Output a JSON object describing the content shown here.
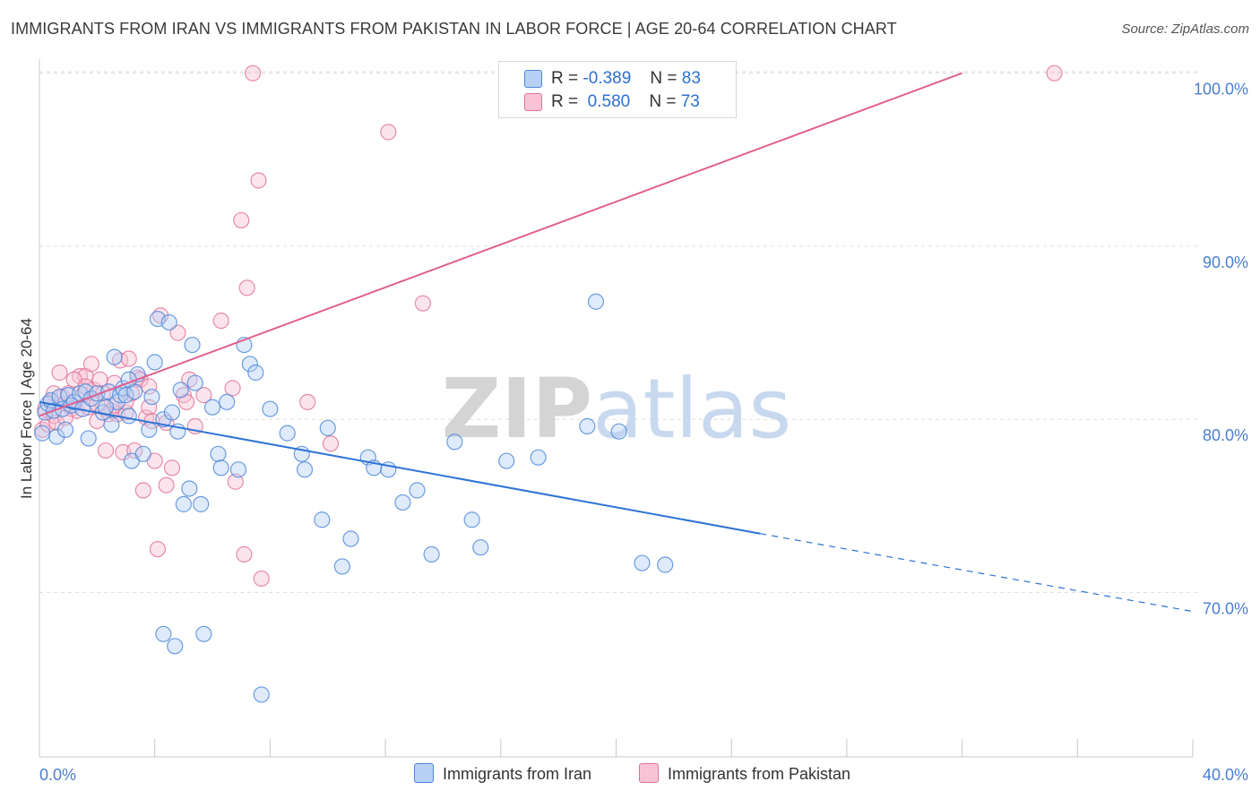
{
  "title": "IMMIGRANTS FROM IRAN VS IMMIGRANTS FROM PAKISTAN IN LABOR FORCE | AGE 20-64 CORRELATION CHART",
  "source": "Source: ZipAtlas.com",
  "watermark": "ZIPatlas",
  "colors": {
    "iran": "#4a86d8",
    "iran_fill": "#b8d0f3",
    "pakistan": "#e07098",
    "pakistan_fill": "#f8c4d5",
    "grid": "#dddddd",
    "tick_text": "#4a7fd0"
  },
  "legend": {
    "iran": {
      "r_label": "R =",
      "r_value": "-0.389",
      "n_label": "N =",
      "n_value": "83"
    },
    "pakistan": {
      "r_label": "R =",
      "r_value": "0.580",
      "n_label": "N =",
      "n_value": "73"
    }
  },
  "bottom_legend": {
    "iran": "Immigrants from Iran",
    "pakistan": "Immigrants from Pakistan"
  },
  "chart_data": {
    "type": "scatter",
    "title": "IMMIGRANTS FROM IRAN VS IMMIGRANTS FROM PAKISTAN IN LABOR FORCE | AGE 20-64 CORRELATION CHART",
    "ylabel": "In Labor Force | Age 20-64",
    "xlim": [
      0,
      40
    ],
    "ylim": [
      60.5,
      100.5
    ],
    "x_tick_labels": [
      "0.0%",
      "40.0%"
    ],
    "y_ticks": [
      70,
      80,
      90,
      100
    ],
    "y_tick_labels": [
      "70.0%",
      "80.0%",
      "90.0%",
      "100.0%"
    ],
    "grid": true,
    "legend_position": "top-center",
    "series": [
      {
        "name": "Immigrants from Iran",
        "points": [
          [
            0.1,
            79.2
          ],
          [
            0.2,
            80.4
          ],
          [
            0.3,
            80.9
          ],
          [
            0.4,
            81.1
          ],
          [
            0.5,
            80.5
          ],
          [
            0.6,
            79.0
          ],
          [
            0.7,
            81.3
          ],
          [
            0.8,
            80.6
          ],
          [
            0.9,
            79.4
          ],
          [
            1.0,
            81.4
          ],
          [
            1.1,
            80.8
          ],
          [
            1.2,
            81.0
          ],
          [
            1.4,
            81.5
          ],
          [
            1.5,
            80.6
          ],
          [
            1.6,
            81.6
          ],
          [
            1.7,
            78.9
          ],
          [
            1.8,
            81.2
          ],
          [
            2.0,
            81.5
          ],
          [
            2.2,
            80.4
          ],
          [
            2.4,
            81.6
          ],
          [
            2.5,
            79.7
          ],
          [
            2.6,
            83.6
          ],
          [
            2.7,
            81.0
          ],
          [
            2.8,
            81.4
          ],
          [
            2.9,
            81.8
          ],
          [
            3.0,
            81.4
          ],
          [
            3.1,
            80.2
          ],
          [
            3.2,
            77.6
          ],
          [
            3.3,
            81.6
          ],
          [
            3.4,
            82.6
          ],
          [
            3.6,
            78.0
          ],
          [
            3.8,
            79.4
          ],
          [
            3.9,
            81.3
          ],
          [
            4.0,
            83.3
          ],
          [
            4.1,
            85.8
          ],
          [
            4.3,
            80.0
          ],
          [
            4.5,
            85.6
          ],
          [
            4.6,
            80.4
          ],
          [
            4.8,
            79.3
          ],
          [
            4.9,
            81.7
          ],
          [
            5.0,
            75.1
          ],
          [
            5.2,
            76.0
          ],
          [
            5.3,
            84.3
          ],
          [
            5.4,
            82.1
          ],
          [
            5.6,
            75.1
          ],
          [
            6.0,
            80.7
          ],
          [
            6.2,
            78.0
          ],
          [
            6.3,
            77.2
          ],
          [
            6.9,
            77.1
          ],
          [
            7.1,
            84.3
          ],
          [
            7.3,
            83.2
          ],
          [
            7.5,
            82.7
          ],
          [
            8.0,
            80.6
          ],
          [
            8.6,
            79.2
          ],
          [
            9.1,
            78.0
          ],
          [
            9.2,
            77.1
          ],
          [
            9.8,
            74.2
          ],
          [
            10.0,
            79.5
          ],
          [
            10.5,
            71.5
          ],
          [
            10.8,
            73.1
          ],
          [
            11.4,
            77.8
          ],
          [
            11.6,
            77.2
          ],
          [
            12.1,
            77.1
          ],
          [
            12.6,
            75.2
          ],
          [
            13.1,
            75.9
          ],
          [
            13.6,
            72.2
          ],
          [
            14.4,
            78.7
          ],
          [
            15.0,
            74.2
          ],
          [
            15.3,
            72.6
          ],
          [
            16.2,
            77.6
          ],
          [
            17.3,
            77.8
          ],
          [
            19.3,
            86.8
          ],
          [
            19.0,
            79.6
          ],
          [
            20.1,
            79.3
          ],
          [
            20.9,
            71.7
          ],
          [
            21.7,
            71.6
          ],
          [
            5.7,
            67.6
          ],
          [
            4.3,
            67.6
          ],
          [
            4.7,
            66.9
          ],
          [
            7.7,
            64.1
          ],
          [
            3.1,
            82.3
          ],
          [
            6.5,
            81.0
          ],
          [
            2.3,
            80.7
          ]
        ]
      },
      {
        "name": "Immigrants from Pakistan",
        "points": [
          [
            0.1,
            79.4
          ],
          [
            0.2,
            80.6
          ],
          [
            0.3,
            79.7
          ],
          [
            0.4,
            81.0
          ],
          [
            0.5,
            80.2
          ],
          [
            0.6,
            79.8
          ],
          [
            0.7,
            82.7
          ],
          [
            0.8,
            81.3
          ],
          [
            0.9,
            80.9
          ],
          [
            1.0,
            81.5
          ],
          [
            1.1,
            80.6
          ],
          [
            1.3,
            80.5
          ],
          [
            1.4,
            82.5
          ],
          [
            1.5,
            81.4
          ],
          [
            1.6,
            82.5
          ],
          [
            1.7,
            80.7
          ],
          [
            1.8,
            83.2
          ],
          [
            1.9,
            81.7
          ],
          [
            2.0,
            80.9
          ],
          [
            2.1,
            82.3
          ],
          [
            2.2,
            81.5
          ],
          [
            2.3,
            78.2
          ],
          [
            2.4,
            80.3
          ],
          [
            2.5,
            80.5
          ],
          [
            2.6,
            82.1
          ],
          [
            2.7,
            80.3
          ],
          [
            2.8,
            83.4
          ],
          [
            2.9,
            78.1
          ],
          [
            3.0,
            80.4
          ],
          [
            3.1,
            83.5
          ],
          [
            3.2,
            81.5
          ],
          [
            3.3,
            78.2
          ],
          [
            3.4,
            82.4
          ],
          [
            3.5,
            82.3
          ],
          [
            3.6,
            75.9
          ],
          [
            3.7,
            80.1
          ],
          [
            3.8,
            80.7
          ],
          [
            3.9,
            79.9
          ],
          [
            4.0,
            77.6
          ],
          [
            4.1,
            72.5
          ],
          [
            4.2,
            86.0
          ],
          [
            4.4,
            76.2
          ],
          [
            4.6,
            77.2
          ],
          [
            4.8,
            85.0
          ],
          [
            5.0,
            81.4
          ],
          [
            5.2,
            82.3
          ],
          [
            5.4,
            79.6
          ],
          [
            5.7,
            81.4
          ],
          [
            6.3,
            85.7
          ],
          [
            6.7,
            81.8
          ],
          [
            6.8,
            76.4
          ],
          [
            7.0,
            91.5
          ],
          [
            7.1,
            72.2
          ],
          [
            7.2,
            87.6
          ],
          [
            7.4,
            100.0
          ],
          [
            7.6,
            93.8
          ],
          [
            7.7,
            70.8
          ],
          [
            9.3,
            81.0
          ],
          [
            10.1,
            78.6
          ],
          [
            12.1,
            96.6
          ],
          [
            13.3,
            86.7
          ],
          [
            16.8,
            100.0
          ],
          [
            35.2,
            100.0
          ],
          [
            2.6,
            80.8
          ],
          [
            1.2,
            82.3
          ],
          [
            3.8,
            81.9
          ],
          [
            0.9,
            80.1
          ],
          [
            2.0,
            79.9
          ],
          [
            4.4,
            79.8
          ],
          [
            3.0,
            81.0
          ],
          [
            1.6,
            81.9
          ],
          [
            5.1,
            81.0
          ],
          [
            0.5,
            81.5
          ]
        ]
      }
    ],
    "trend_lines": [
      {
        "series": "Immigrants from Iran",
        "solid": [
          [
            0,
            81.0
          ],
          [
            25,
            73.4
          ]
        ],
        "dashed": [
          [
            25,
            73.4
          ],
          [
            40,
            68.9
          ]
        ]
      },
      {
        "series": "Immigrants from Pakistan",
        "solid": [
          [
            0,
            80.2
          ],
          [
            32,
            100.0
          ]
        ]
      }
    ]
  }
}
